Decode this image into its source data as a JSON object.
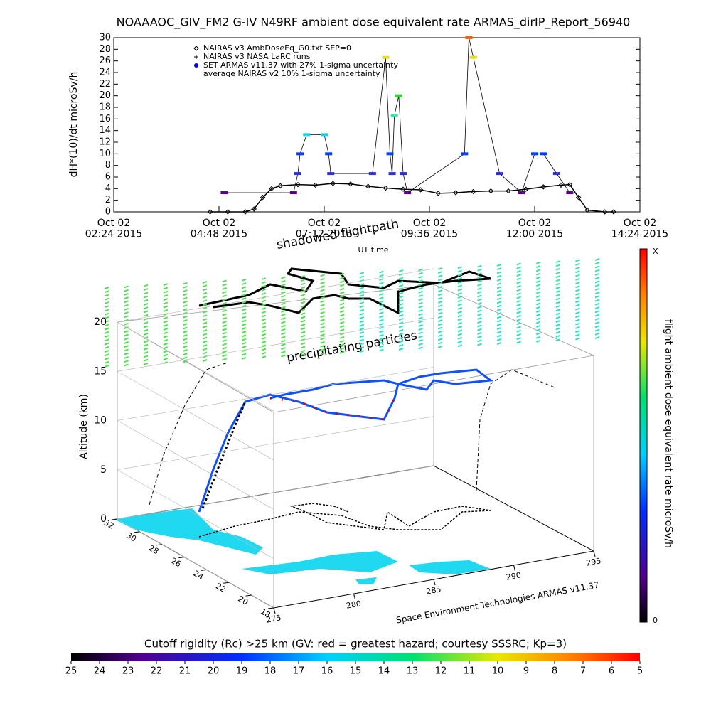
{
  "chart_data": [
    {
      "type": "line",
      "title": "NOAAAOC_GIV_FM2 G-IV   N49RF  ambient dose equivalent rate ARMAS_dirIP_Report_56940",
      "ylabel": "dH*(10)/dt microSv/h",
      "xlabel": "UT time",
      "xlim": [
        2.4,
        14.4
      ],
      "xticks": [
        {
          "value": 2.4,
          "label": "Oct 02\n02:24 2015"
        },
        {
          "value": 4.8,
          "label": "Oct 02\n04:48 2015"
        },
        {
          "value": 7.2,
          "label": "Oct 02\n07:12 2015"
        },
        {
          "value": 9.6,
          "label": "Oct 02\n09:36 2015"
        },
        {
          "value": 12.0,
          "label": "Oct 02\n12:00 2015"
        },
        {
          "value": 14.4,
          "label": "Oct 02\n14:24 2015"
        }
      ],
      "ylim": [
        0,
        30
      ],
      "yticks": [
        0,
        2,
        4,
        6,
        8,
        10,
        12,
        14,
        16,
        18,
        20,
        22,
        24,
        26,
        28,
        30
      ],
      "series": [
        {
          "name": "NAIRAS v3 AmbDoseEq_G0.txt SEP=0",
          "color": "#000000",
          "x": [
            4.6,
            5.0,
            5.4,
            5.6,
            5.8,
            6.0,
            6.2,
            6.6,
            7.0,
            7.4,
            7.8,
            8.2,
            8.6,
            9.0,
            9.4,
            9.8,
            10.2,
            10.6,
            11.0,
            11.4,
            11.8,
            12.2,
            12.6,
            12.8,
            13.0,
            13.2,
            13.6,
            13.8
          ],
          "values": [
            0,
            0,
            0,
            0.5,
            2.5,
            4,
            4.5,
            4.7,
            4.6,
            4.9,
            4.8,
            4.4,
            4.1,
            3.9,
            3.8,
            3.2,
            3.3,
            3.5,
            3.6,
            3.6,
            3.9,
            4.3,
            4.6,
            4.7,
            2.5,
            0.3,
            0,
            0
          ]
        },
        {
          "name": "NAIRAS v3 NASA LaRC runs"
        },
        {
          "name": "SET ARMAS v11.37 with 27% 1-sigma uncertainty",
          "color": "#0000ff",
          "x": [
            4.92,
            6.5,
            6.6,
            6.65,
            6.8,
            7.2,
            7.3,
            7.35,
            8.3,
            8.6,
            8.7,
            8.75,
            8.8,
            8.9,
            9.0,
            9.1,
            10.4,
            10.5,
            10.6,
            11.2,
            11.7,
            12.0,
            12.2,
            12.5,
            12.8
          ],
          "values": [
            3.3,
            3.3,
            6.6,
            10,
            13.3,
            13.3,
            10,
            6.6,
            6.6,
            26.6,
            10,
            6.6,
            16.6,
            20,
            6.6,
            3.3,
            10,
            30,
            26.6,
            6.6,
            3.3,
            10,
            10,
            6.6,
            3.3
          ],
          "colors": [
            "#5a0090",
            "#5a0090",
            "#3030d0",
            "#0040ff",
            "#20d0e0",
            "#20d0e0",
            "#0040ff",
            "#3030d0",
            "#3030d0",
            "#e8e000",
            "#0040ff",
            "#3030d0",
            "#40e0a0",
            "#20e020",
            "#3030d0",
            "#5a0090",
            "#0040ff",
            "#ff6000",
            "#e8e000",
            "#3030d0",
            "#5a0090",
            "#0040ff",
            "#0040ff",
            "#3030d0",
            "#5a0090"
          ]
        },
        {
          "name": "average NAIRAS v2 10% 1-sigma uncertainty"
        }
      ]
    },
    {
      "type": "surface3d",
      "title": "shadowed flightpath",
      "annotation": "precipitating particles",
      "zlabel": "Altitude (km)",
      "credit": "Space Environment Technologies ARMAS v11.37",
      "colorbar_label": "flight ambient dose equivalent rate microSv/h",
      "colorbar_ends": [
        "X",
        "0"
      ],
      "zlim": [
        0,
        20
      ],
      "zticks": [
        0,
        5,
        10,
        15,
        20
      ],
      "ylim": [
        32,
        18
      ],
      "yticks": [
        32,
        30,
        28,
        26,
        24,
        22,
        20,
        18
      ],
      "xlim": [
        275,
        295
      ],
      "xticks": [
        275,
        280,
        285,
        290,
        295
      ]
    },
    {
      "type": "colorbar",
      "title": "Cutoff rigidity (Rc) >25 km (GV: red = greatest hazard; courtesy SSSRC; Kp=3)",
      "xlim": [
        25,
        5
      ],
      "xticks": [
        25,
        24,
        23,
        22,
        21,
        20,
        19,
        18,
        17,
        16,
        15,
        14,
        13,
        12,
        11,
        10,
        9,
        8,
        7,
        6,
        5
      ]
    }
  ]
}
